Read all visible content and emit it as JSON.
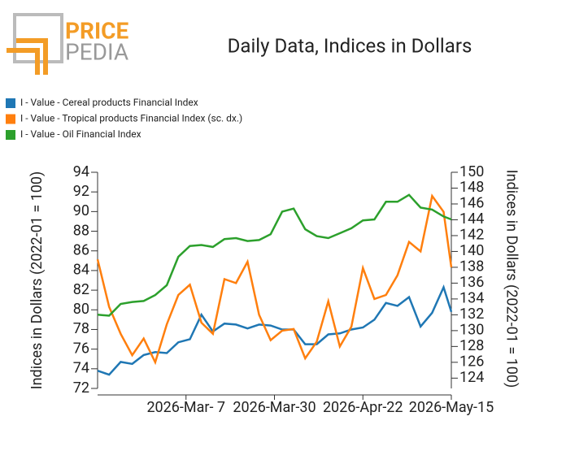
{
  "logo": {
    "top": "PRICE",
    "bottom": "PEDIA"
  },
  "chart_data": {
    "type": "line",
    "title": "Daily Data, Indices in Dollars",
    "ylabel": "Indices in Dollars (2022-01 = 100)",
    "y2label": "Indices in Dollars (2022-01 = 100)",
    "x": [
      "2026-02-12",
      "2026-02-15",
      "2026-02-18",
      "2026-02-21",
      "2026-02-24",
      "2026-02-27",
      "2026-03-02",
      "2026-03-05",
      "2026-03-08",
      "2026-03-11",
      "2026-03-14",
      "2026-03-17",
      "2026-03-20",
      "2026-03-23",
      "2026-03-26",
      "2026-03-29",
      "2026-04-01",
      "2026-04-04",
      "2026-04-07",
      "2026-04-10",
      "2026-04-13",
      "2026-04-16",
      "2026-04-19",
      "2026-04-22",
      "2026-04-25",
      "2026-04-28",
      "2026-05-01",
      "2026-05-04",
      "2026-05-07",
      "2026-05-10",
      "2026-05-13",
      "2026-05-15"
    ],
    "xlim": [
      "2026-02-12",
      "2026-05-15"
    ],
    "xticks": [
      {
        "value": "2026-03-07",
        "label": "2026-Mar- 7"
      },
      {
        "value": "2026-03-30",
        "label": "2026-Mar-30"
      },
      {
        "value": "2026-04-22",
        "label": "2026-Apr-22"
      },
      {
        "value": "2026-05-15",
        "label": "2026-May-15"
      }
    ],
    "ylim": [
      72,
      94
    ],
    "yticks": [
      72,
      74,
      76,
      78,
      80,
      82,
      84,
      86,
      88,
      90,
      92,
      94
    ],
    "y2lim": [
      122.7,
      150
    ],
    "y2ticks": [
      124,
      126,
      128,
      130,
      132,
      134,
      136,
      138,
      140,
      142,
      144,
      146,
      148,
      150
    ],
    "legend": "top-left",
    "series": [
      {
        "name": "I - Value - Cereal products Financial Index",
        "color": "#1f77b4",
        "values": [
          73.8,
          73.4,
          74.7,
          74.5,
          75.4,
          75.7,
          75.6,
          76.7,
          77,
          79.5,
          77.8,
          78.6,
          78.5,
          78.1,
          78.5,
          78.4,
          78,
          78,
          76.5,
          76.5,
          77.5,
          77.6,
          78,
          78.2,
          79,
          80.7,
          80.4,
          81.3,
          78.3,
          79.7,
          82.3,
          79.8
        ]
      },
      {
        "name": "I - Value - Tropical products Financial Index (sc. dx.)",
        "color": "#ff7f0e",
        "axis": "y2",
        "values": [
          139,
          133,
          129.6,
          126.9,
          129,
          126,
          130.8,
          134.5,
          135.8,
          131,
          129.6,
          136.5,
          136,
          138.7,
          132,
          128.8,
          130,
          130.2,
          126.5,
          128.6,
          133.7,
          128,
          130.5,
          137.9,
          134,
          134.5,
          137,
          141.2,
          140,
          147,
          145,
          138
        ]
      },
      {
        "name": "I - Value - Oil Financial Index",
        "color": "#2ca02c",
        "values": [
          79.5,
          79.4,
          80.6,
          80.8,
          80.9,
          81.5,
          82.5,
          85.4,
          86.5,
          86.6,
          86.4,
          87.2,
          87.3,
          87,
          87.1,
          87.7,
          90,
          90.3,
          88.2,
          87.5,
          87.3,
          87.8,
          88.3,
          89.1,
          89.2,
          91,
          91,
          91.7,
          90.4,
          90.2,
          89.5,
          89.2
        ]
      }
    ]
  }
}
